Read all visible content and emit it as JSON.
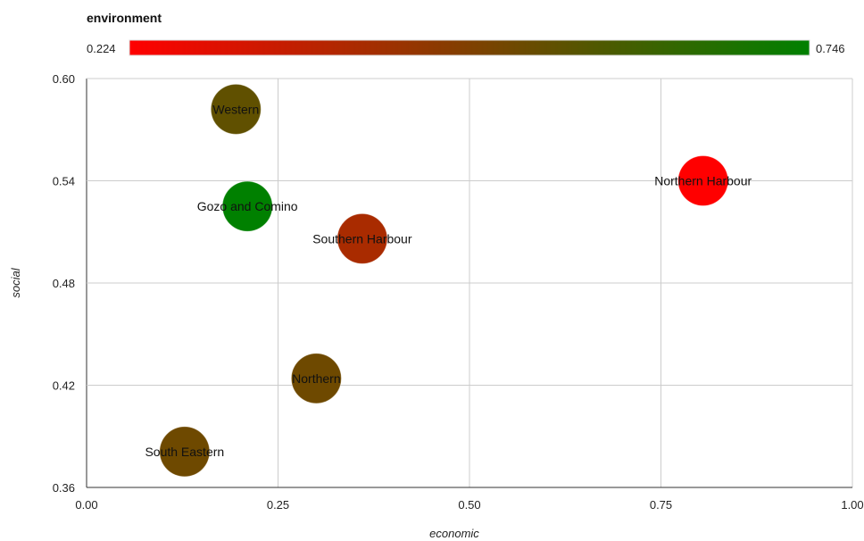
{
  "chart_data": {
    "type": "scatter",
    "title": "",
    "xlabel": "economic",
    "ylabel": "social",
    "xlim": [
      0,
      1
    ],
    "ylim": [
      0.36,
      0.6
    ],
    "x_ticks": [
      "0.00",
      "0.25",
      "0.50",
      "0.75",
      "1.00"
    ],
    "y_ticks": [
      "0.60",
      "0.54",
      "0.48",
      "0.42",
      "0.36"
    ],
    "grid": true,
    "color_axis": {
      "title": "environment",
      "min": 0.224,
      "max": 0.746,
      "min_label": "0.224",
      "max_label": "0.746",
      "color_min": "#ff0000",
      "color_max": "#008000"
    },
    "points": [
      {
        "label": "Western",
        "x": 0.195,
        "y": 0.582,
        "environment": 0.55
      },
      {
        "label": "Northern Harbour",
        "x": 0.805,
        "y": 0.54,
        "environment": 0.224
      },
      {
        "label": "Gozo and Comino",
        "x": 0.21,
        "y": 0.525,
        "environment": 0.746
      },
      {
        "label": "Southern Harbour",
        "x": 0.36,
        "y": 0.506,
        "environment": 0.4
      },
      {
        "label": "Northern",
        "x": 0.3,
        "y": 0.424,
        "environment": 0.52
      },
      {
        "label": "South Eastern",
        "x": 0.128,
        "y": 0.381,
        "environment": 0.52
      }
    ]
  }
}
